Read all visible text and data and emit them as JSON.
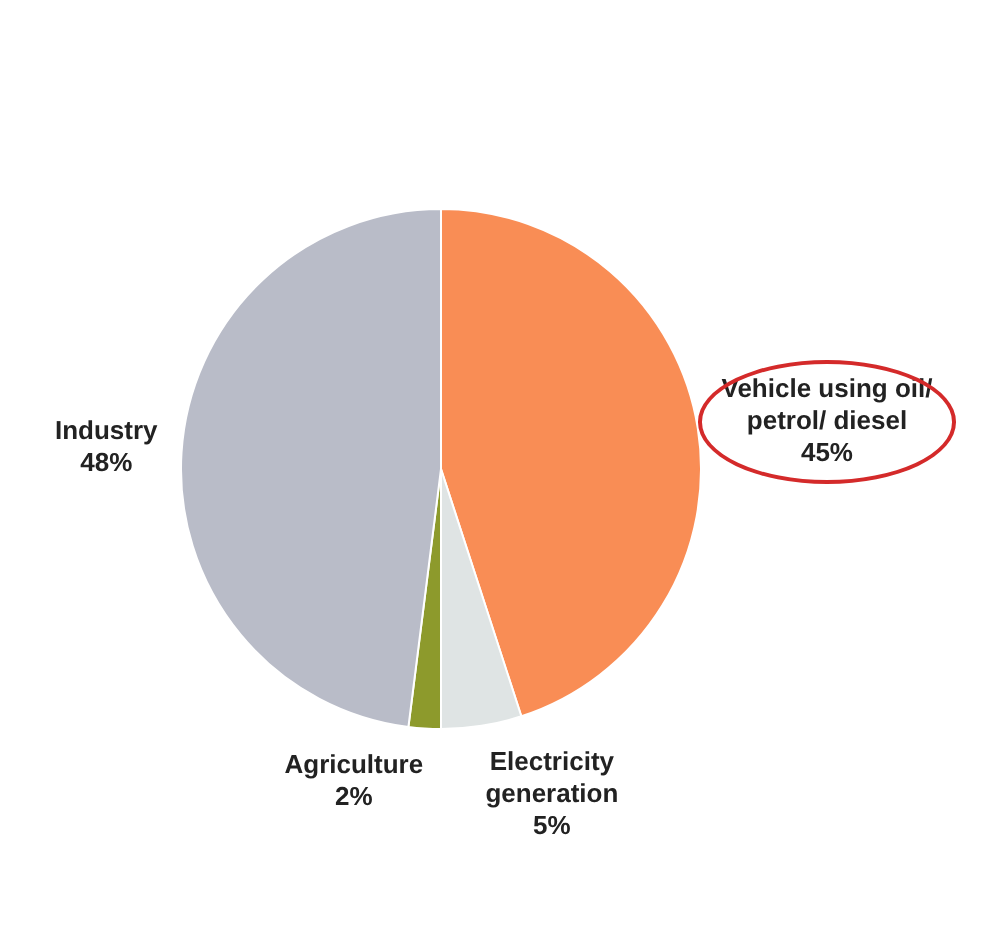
{
  "chart_data": {
    "type": "pie",
    "categories": [
      "Vehicle using oil/ petrol/ diesel",
      "Electricity generation",
      "Agriculture",
      "Industry"
    ],
    "values": [
      45,
      5,
      2,
      48
    ],
    "colors": [
      "#f98d55",
      "#dfe4e4",
      "#8d9a2c",
      "#b9bcc8"
    ],
    "value_labels": [
      "45%",
      "5%",
      "2%",
      "48%"
    ],
    "legend": false
  }
}
